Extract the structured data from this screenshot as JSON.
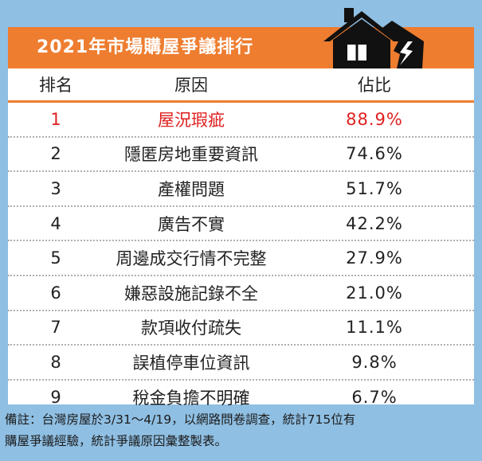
{
  "title": "2021年市場購屋爭議排行",
  "headers": {
    "rank": "排名",
    "reason": "原因",
    "share": "佔比"
  },
  "rows": [
    {
      "rank": "1",
      "reason": "屋況瑕疵",
      "share": "88.9%"
    },
    {
      "rank": "2",
      "reason": "隱匿房地重要資訊",
      "share": "74.6%"
    },
    {
      "rank": "3",
      "reason": "產權問題",
      "share": "51.7%"
    },
    {
      "rank": "4",
      "reason": "廣告不實",
      "share": "42.2%"
    },
    {
      "rank": "5",
      "reason": "周邊成交行情不完整",
      "share": "27.9%"
    },
    {
      "rank": "6",
      "reason": "嫌惡設施記錄不全",
      "share": "21.0%"
    },
    {
      "rank": "7",
      "reason": "款項收付疏失",
      "share": "11.1%"
    },
    {
      "rank": "8",
      "reason": "誤植停車位資訊",
      "share": "9.8%"
    },
    {
      "rank": "9",
      "reason": "稅金負擔不明確",
      "share": "6.7%"
    }
  ],
  "note": {
    "line1": "備註：台灣房屋於3/31～4/19，以網路問卷調查，統計715位有",
    "line2": "購屋爭議經驗，統計爭議原因彙整製表。"
  },
  "colors": {
    "accent": "#ee7d30",
    "highlight": "#e02020",
    "background": "#8fbfe3"
  },
  "icons": {
    "house": "broken-house-icon"
  }
}
